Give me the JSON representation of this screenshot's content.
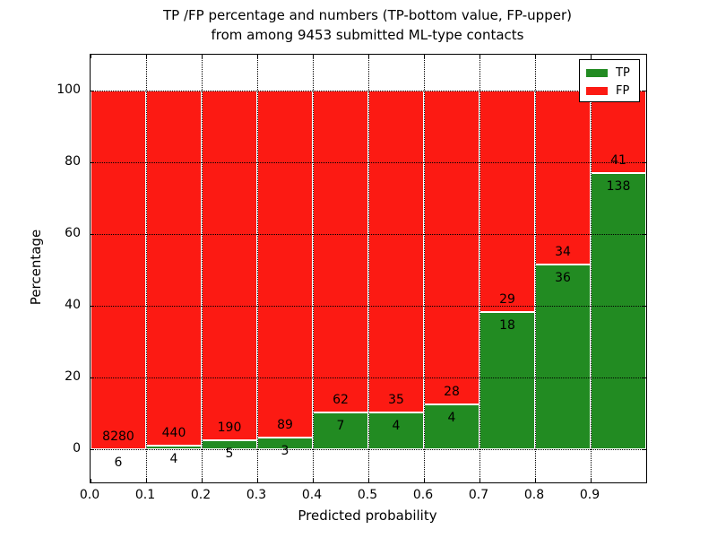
{
  "title": {
    "line1": "TP /FP percentage and numbers (TP-bottom value, FP-upper)",
    "line2": "from among 9453 submitted ML-type contacts"
  },
  "axes": {
    "xlabel": "Predicted probability",
    "ylabel": "Percentage",
    "xtick_labels": [
      "0.0",
      "0.1",
      "0.2",
      "0.3",
      "0.4",
      "0.5",
      "0.6",
      "0.7",
      "0.8",
      "0.9"
    ],
    "ytick_labels": [
      "0",
      "20",
      "40",
      "60",
      "80",
      "100"
    ]
  },
  "legend": {
    "items": [
      {
        "label": "TP",
        "color": "#228b22"
      },
      {
        "label": "FP",
        "color": "#fc1a13"
      }
    ]
  },
  "chart_data": {
    "type": "bar",
    "stacked": true,
    "normalized": "each bin scaled to 100%, labels show raw counts (TP below boundary, FP above)",
    "title": "TP /FP percentage and numbers (TP-bottom value, FP-upper) from among 9453 submitted ML-type contacts",
    "xlabel": "Predicted probability",
    "ylabel": "Percentage",
    "total_contacts": 9453,
    "bins": [
      "0.0-0.1",
      "0.1-0.2",
      "0.2-0.3",
      "0.3-0.4",
      "0.4-0.5",
      "0.5-0.6",
      "0.6-0.7",
      "0.7-0.8",
      "0.8-0.9",
      "0.9-1.0"
    ],
    "series": [
      {
        "name": "TP",
        "color": "#228b22",
        "counts": [
          6,
          4,
          5,
          3,
          7,
          4,
          4,
          18,
          36,
          138
        ]
      },
      {
        "name": "FP",
        "color": "#fc1a13",
        "counts": [
          8280,
          440,
          190,
          89,
          62,
          35,
          28,
          29,
          34,
          41
        ]
      }
    ],
    "tp_percent_per_bin": [
      0.07,
      0.9,
      2.56,
      3.26,
      10.14,
      10.26,
      12.5,
      38.3,
      51.43,
      77.09
    ],
    "xticks": [
      0.0,
      0.1,
      0.2,
      0.3,
      0.4,
      0.5,
      0.6,
      0.7,
      0.8,
      0.9
    ],
    "yticks": [
      0,
      20,
      40,
      60,
      80,
      100
    ],
    "ylim_visible": [
      -9.25,
      110.25
    ],
    "grid": "dotted both axes"
  }
}
